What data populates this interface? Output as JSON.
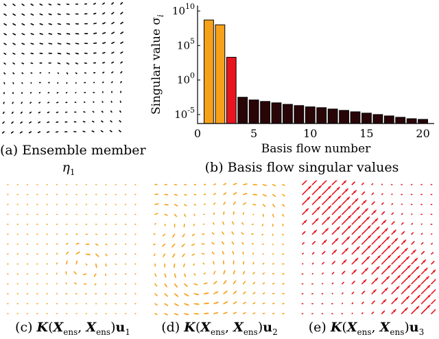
{
  "panels": {
    "a": {
      "caption": "(a) Ensemble member",
      "caption_line2": "η",
      "caption_sub": "1"
    },
    "b": {
      "caption": "(b) Basis flow singular values"
    },
    "c": {
      "caption_prefix": "(c) ",
      "subscript": "1"
    },
    "d": {
      "caption_prefix": "(d) ",
      "subscript": "2"
    },
    "e": {
      "caption_prefix": "(e) ",
      "subscript": "3"
    }
  },
  "colors": {
    "orange": "#f7a11a",
    "red": "#e8141e",
    "dark": "#2a0508",
    "arrow_black": "#000000"
  },
  "chart_data": {
    "type": "bar",
    "title": "",
    "xlabel": "Basis flow number",
    "ylabel": "Singular value σ",
    "ylabel_sub": "i",
    "yscale": "log",
    "xticks": [
      "0",
      "5",
      "10",
      "15",
      "20"
    ],
    "yticks": [
      "10^10",
      "10^5",
      "10^0",
      "10^-5"
    ],
    "xlim": [
      0,
      21
    ],
    "ylim_exp": [
      -6.3,
      10.8
    ],
    "categories": [
      1,
      2,
      3,
      4,
      5,
      6,
      7,
      8,
      9,
      10,
      11,
      12,
      13,
      14,
      15,
      16,
      17,
      18,
      19,
      20
    ],
    "values": [
      500000000.0,
      100000000.0,
      2000,
      0.0032,
      0.0013,
      0.00079,
      0.0005,
      0.0003,
      0.0002,
      0.00013,
      0.0001,
      6.3e-05,
      4e-05,
      2.5e-05,
      1.6e-05,
      1e-05,
      6.3e-06,
      4e-06,
      2.5e-06,
      2e-06
    ]
  },
  "caption_math": {
    "K": "K",
    "X": "X",
    "ens": "ens",
    "u": "u"
  }
}
